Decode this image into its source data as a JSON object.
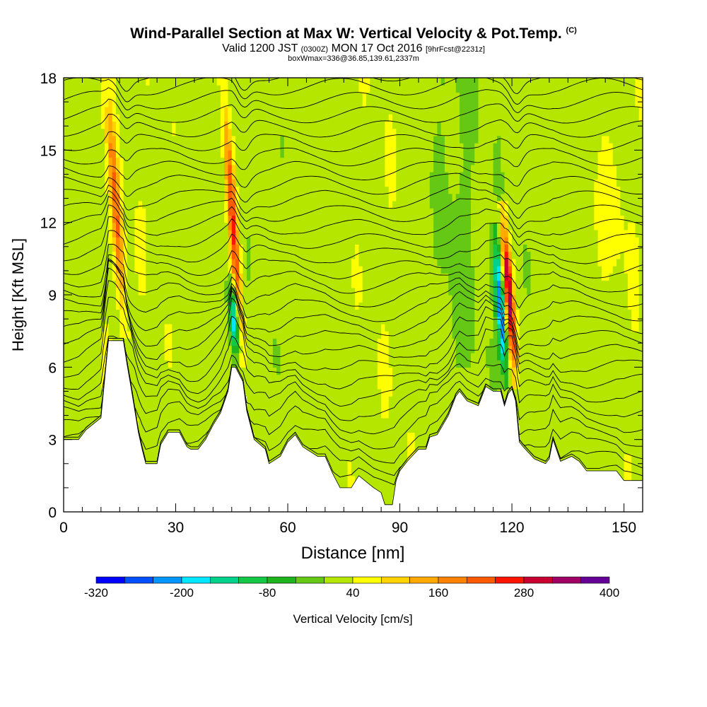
{
  "title": {
    "main": "Wind-Parallel Section at Max W: Vertical Velocity & Pot.Temp.",
    "mark": "(C)",
    "valid_prefix": "Valid 1200 JST",
    "valid_utc": "(0300Z)",
    "valid_date": "MON 17 Oct 2016",
    "forecast": "[9hrFcst@2231z]",
    "box": "boxWmax=336@36.85,139.61,2337m"
  },
  "chart_data": {
    "type": "heatmap",
    "xlabel": "Distance [nm]",
    "ylabel": "Height [Kft MSL]",
    "xlim": [
      0,
      155
    ],
    "ylim": [
      0,
      18
    ],
    "x_ticks": [
      0,
      30,
      60,
      90,
      120,
      150
    ],
    "y_ticks": [
      0,
      3,
      6,
      9,
      12,
      15,
      18
    ],
    "colorbar": {
      "label": "Vertical Velocity [cm/s]",
      "tick_labels": [
        -320,
        -200,
        -80,
        40,
        160,
        280,
        400
      ],
      "levels": [
        -320,
        -280,
        -240,
        -200,
        -160,
        -120,
        -80,
        -40,
        0,
        40,
        80,
        120,
        160,
        200,
        240,
        280,
        320,
        360,
        400
      ],
      "colors": [
        "#0000ff",
        "#0050ff",
        "#0096ff",
        "#00e6ff",
        "#00d28c",
        "#14c846",
        "#1eb41e",
        "#64c814",
        "#b4e600",
        "#ffff00",
        "#ffd200",
        "#ffaa00",
        "#ff8200",
        "#ff5a00",
        "#ff1400",
        "#c80032",
        "#a00064",
        "#640096"
      ]
    },
    "terrain_kft": [
      [
        0,
        3.0
      ],
      [
        4,
        3.0
      ],
      [
        6,
        3.4
      ],
      [
        10,
        3.9
      ],
      [
        12,
        7.1
      ],
      [
        16,
        7.1
      ],
      [
        17,
        6.1
      ],
      [
        18,
        5.2
      ],
      [
        20,
        3.3
      ],
      [
        21,
        2.6
      ],
      [
        22,
        2.0
      ],
      [
        25,
        2.0
      ],
      [
        26,
        2.8
      ],
      [
        28,
        3.3
      ],
      [
        31,
        3.3
      ],
      [
        33,
        2.7
      ],
      [
        34,
        2.6
      ],
      [
        36,
        2.6
      ],
      [
        38,
        3.0
      ],
      [
        40,
        3.6
      ],
      [
        42,
        4.1
      ],
      [
        44,
        5.0
      ],
      [
        45,
        6.0
      ],
      [
        46,
        6.0
      ],
      [
        48,
        5.4
      ],
      [
        49,
        4.2
      ],
      [
        51,
        3.0
      ],
      [
        54,
        2.6
      ],
      [
        55,
        2.0
      ],
      [
        58,
        2.3
      ],
      [
        60,
        2.9
      ],
      [
        62,
        3.2
      ],
      [
        64,
        2.7
      ],
      [
        66,
        2.5
      ],
      [
        68,
        2.3
      ],
      [
        70,
        2.3
      ],
      [
        72,
        1.6
      ],
      [
        74,
        1.0
      ],
      [
        77,
        1.0
      ],
      [
        79,
        1.5
      ],
      [
        83,
        1.0
      ],
      [
        85,
        0.8
      ],
      [
        86,
        0.3
      ],
      [
        88,
        0.3
      ],
      [
        89,
        1.3
      ],
      [
        90,
        1.7
      ],
      [
        92,
        2.1
      ],
      [
        95,
        2.6
      ],
      [
        97,
        2.6
      ],
      [
        98,
        3.1
      ],
      [
        100,
        3.2
      ],
      [
        103,
        4.0
      ],
      [
        105,
        4.8
      ],
      [
        106,
        5.0
      ],
      [
        108,
        4.6
      ],
      [
        111,
        4.4
      ],
      [
        112,
        4.8
      ],
      [
        113,
        5.2
      ],
      [
        115,
        5.0
      ],
      [
        117,
        5.0
      ],
      [
        118,
        4.4
      ],
      [
        119,
        4.9
      ],
      [
        120,
        5.1
      ],
      [
        121,
        4.6
      ],
      [
        122,
        2.9
      ],
      [
        123,
        2.7
      ],
      [
        126,
        2.2
      ],
      [
        129,
        2.0
      ],
      [
        130,
        2.2
      ],
      [
        131,
        3.0
      ],
      [
        133,
        2.1
      ],
      [
        136,
        2.3
      ],
      [
        138,
        2.1
      ],
      [
        140,
        1.7
      ],
      [
        142,
        1.7
      ],
      [
        145,
        1.7
      ],
      [
        148,
        1.7
      ],
      [
        150,
        1.3
      ],
      [
        152,
        1.3
      ],
      [
        155,
        1.3
      ]
    ],
    "updraft_plumes": [
      {
        "x": 16.5,
        "z_bottom": 7.1,
        "z_top": 18.0,
        "peak_wvel": 200
      },
      {
        "x": 48.0,
        "z_bottom": 6.0,
        "z_top": 18.0,
        "peak_wvel": 260
      },
      {
        "x": 121.0,
        "z_bottom": 5.0,
        "z_top": 13.0,
        "peak_wvel": 336
      }
    ],
    "downdraft_plumes": [
      {
        "x": 46.5,
        "z_bottom": 6.0,
        "z_top": 10.0,
        "peak_wvel": -200
      },
      {
        "x": 118.5,
        "z_bottom": 5.0,
        "z_top": 12.0,
        "peak_wvel": -240
      }
    ],
    "isentrope_count": 30
  }
}
